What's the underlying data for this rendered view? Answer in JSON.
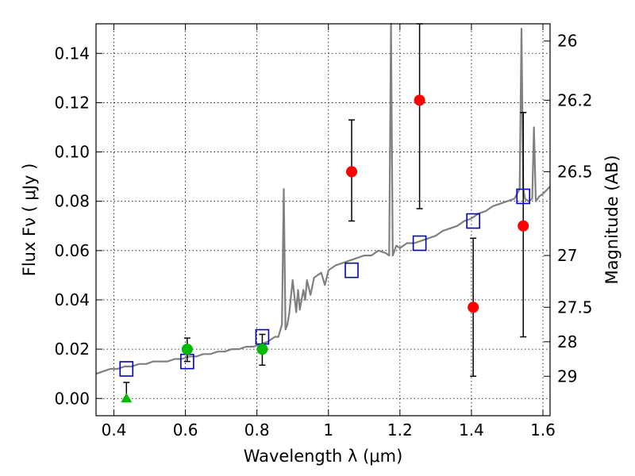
{
  "chart_data": {
    "type": "scatter",
    "xlabel": "Wavelength  λ (μm)",
    "ylabel": "Flux  Fν  ( μJy )",
    "y2label": "Magnitude (AB)",
    "xlim": [
      0.35,
      1.62
    ],
    "ylim": [
      -0.007,
      0.152
    ],
    "grid": true,
    "x_ticks": [
      0.4,
      0.6,
      0.8,
      1.0,
      1.2,
      1.4,
      1.6
    ],
    "x_tick_labels": [
      "0.4",
      "0.6",
      "0.8",
      "1",
      "1.2",
      "1.4",
      "1.6"
    ],
    "y_ticks": [
      0.0,
      0.02,
      0.04,
      0.06,
      0.08,
      0.1,
      0.12,
      0.14
    ],
    "y_tick_labels": [
      "0.00",
      "0.02",
      "0.04",
      "0.06",
      "0.08",
      "0.10",
      "0.12",
      "0.14"
    ],
    "right_ticks": [
      {
        "label": "26",
        "flux": 0.145
      },
      {
        "label": "26.2",
        "flux": 0.121
      },
      {
        "label": "26.5",
        "flux": 0.092
      },
      {
        "label": "27",
        "flux": 0.058
      },
      {
        "label": "27.5",
        "flux": 0.037
      },
      {
        "label": "28",
        "flux": 0.023
      },
      {
        "label": "29",
        "flux": 0.009
      }
    ],
    "model_spectrum": {
      "color": "#808080",
      "x": [
        0.35,
        0.37,
        0.39,
        0.41,
        0.43,
        0.45,
        0.47,
        0.49,
        0.51,
        0.53,
        0.55,
        0.57,
        0.59,
        0.61,
        0.63,
        0.65,
        0.67,
        0.69,
        0.71,
        0.73,
        0.75,
        0.77,
        0.79,
        0.81,
        0.83,
        0.85,
        0.86,
        0.87,
        0.875,
        0.88,
        0.885,
        0.89,
        0.9,
        0.91,
        0.915,
        0.92,
        0.93,
        0.935,
        0.94,
        0.95,
        0.96,
        0.97,
        0.98,
        0.99,
        1.0,
        1.01,
        1.02,
        1.04,
        1.06,
        1.08,
        1.1,
        1.12,
        1.14,
        1.16,
        1.17,
        1.175,
        1.18,
        1.185,
        1.19,
        1.2,
        1.22,
        1.24,
        1.26,
        1.28,
        1.3,
        1.32,
        1.34,
        1.36,
        1.38,
        1.4,
        1.42,
        1.44,
        1.46,
        1.48,
        1.5,
        1.52,
        1.535,
        1.54,
        1.545,
        1.55,
        1.56,
        1.57,
        1.575,
        1.58,
        1.59,
        1.6,
        1.62
      ],
      "y": [
        0.01,
        0.011,
        0.012,
        0.012,
        0.013,
        0.013,
        0.014,
        0.014,
        0.015,
        0.015,
        0.015,
        0.016,
        0.016,
        0.017,
        0.017,
        0.018,
        0.018,
        0.019,
        0.019,
        0.02,
        0.02,
        0.021,
        0.021,
        0.022,
        0.023,
        0.025,
        0.025,
        0.03,
        0.085,
        0.028,
        0.03,
        0.034,
        0.048,
        0.035,
        0.044,
        0.036,
        0.044,
        0.04,
        0.048,
        0.042,
        0.049,
        0.05,
        0.051,
        0.046,
        0.052,
        0.053,
        0.054,
        0.055,
        0.056,
        0.057,
        0.058,
        0.058,
        0.06,
        0.059,
        0.058,
        0.155,
        0.058,
        0.06,
        0.062,
        0.061,
        0.063,
        0.063,
        0.064,
        0.065,
        0.066,
        0.068,
        0.069,
        0.07,
        0.072,
        0.073,
        0.075,
        0.076,
        0.078,
        0.079,
        0.08,
        0.081,
        0.085,
        0.15,
        0.085,
        0.081,
        0.08,
        0.081,
        0.11,
        0.08,
        0.082,
        0.083,
        0.086
      ]
    },
    "series": [
      {
        "name": "",
        "marker": "square-open",
        "color": "#0000cc",
        "x": [
          0.435,
          0.605,
          0.815,
          1.065,
          1.255,
          1.405,
          1.545
        ],
        "y": [
          0.012,
          0.015,
          0.025,
          0.052,
          0.063,
          0.072,
          0.082
        ]
      },
      {
        "name": "",
        "marker": "circle",
        "color": "#00bb00",
        "x": [
          0.605,
          0.815
        ],
        "y": [
          0.02,
          0.02
        ],
        "err_low": [
          0.005,
          0.0065
        ],
        "err_high": [
          0.0045,
          0.006
        ]
      },
      {
        "name": "",
        "marker": "triangle-up",
        "color": "#00bb00",
        "x": [
          0.435
        ],
        "y": [
          0.0
        ],
        "err_low": [
          0.0
        ],
        "err_high": [
          0.0065
        ]
      },
      {
        "name": "",
        "marker": "circle",
        "color": "#ff0000",
        "x": [
          1.065,
          1.255,
          1.405,
          1.545
        ],
        "y": [
          0.092,
          0.121,
          0.037,
          0.07
        ],
        "err_low": [
          0.02,
          0.044,
          0.028,
          0.045
        ],
        "err_high": [
          0.021,
          0.035,
          0.028,
          0.046
        ]
      }
    ]
  }
}
